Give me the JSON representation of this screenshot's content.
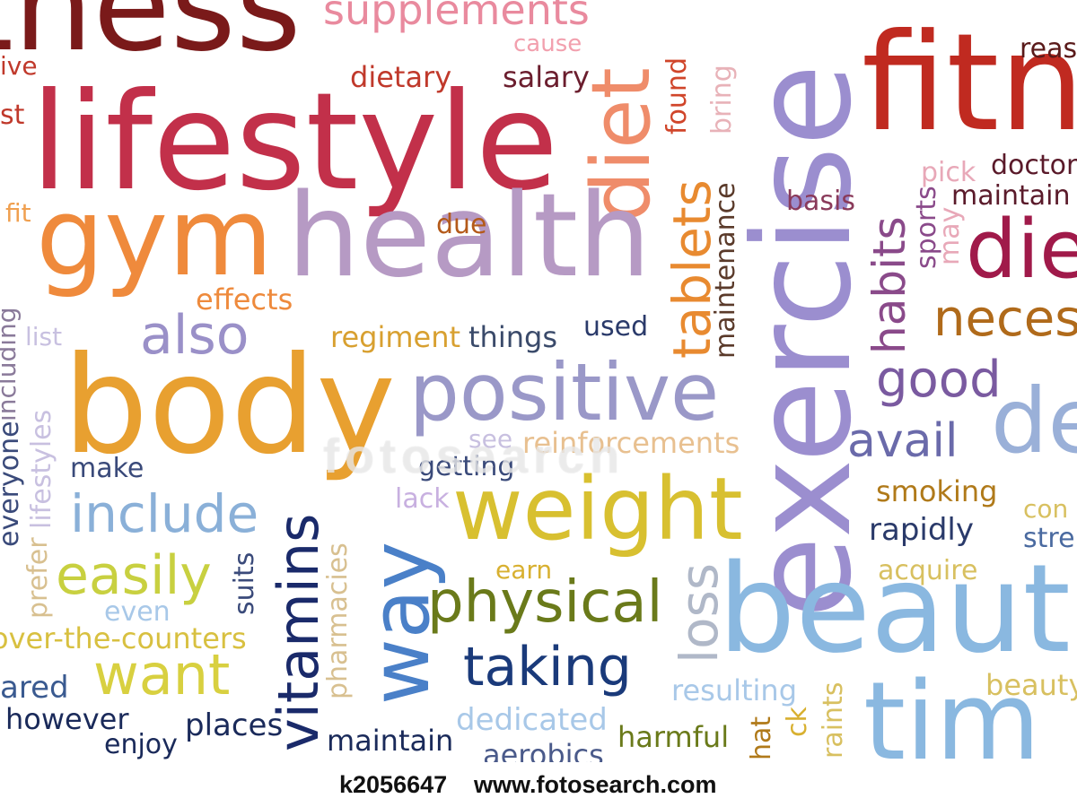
{
  "words": {
    "fitness_top": "tness",
    "supplements": "supplements",
    "ive": "ive",
    "cause": "cause",
    "dietary": "dietary",
    "salary": "salary",
    "lifestyle": "lifestyle",
    "diet": "diet",
    "found": "found",
    "bring": "bring",
    "exercise": "exercise",
    "fitn": "fitn",
    "reas": "reas",
    "st": "st",
    "fit": "fit",
    "gym": "gym",
    "health": "health",
    "due": "due",
    "tablets": "tablets",
    "maintenance": "maintenance",
    "basis": "basis",
    "pick": "pick",
    "doctor": "doctor",
    "maintain_right": "maintain",
    "habits": "habits",
    "sports": "sports",
    "may": "may",
    "die": "die",
    "neces": "neces",
    "effects": "effects",
    "list": "list",
    "also": "also",
    "regiment": "regiment",
    "things": "things",
    "used": "used",
    "including": "including",
    "body": "body",
    "positive": "positive",
    "good": "good",
    "avail": "avail",
    "de": "de",
    "see": "see",
    "reinforcements": "reinforcements",
    "make": "make",
    "getting": "getting",
    "lack": "lack",
    "everyone": "everyone",
    "lifestyles": "lifestyles",
    "prefer": "prefer",
    "include": "include",
    "vitamins": "vitamins",
    "weight": "weight",
    "smoking": "smoking",
    "con": "con",
    "rapidly": "rapidly",
    "stre": "stre",
    "easily": "easily",
    "suits": "suits",
    "way": "way",
    "earn": "earn",
    "acquire": "acquire",
    "pharmacies": "pharmacies",
    "even": "even",
    "physical": "physical",
    "loss": "loss",
    "beauti": "beauti",
    "over_the_counters": "over-the-counters",
    "want": "want",
    "taking": "taking",
    "ared": "ared",
    "resulting": "resulting",
    "beauty": "beauty",
    "however": "however",
    "places": "places",
    "dedicated": "dedicated",
    "tim": "tim",
    "enjoy": "enjoy",
    "maintain_bottom": "maintain",
    "harmful": "harmful",
    "aerobics": "aerobics",
    "hat": "hat",
    "ck": "ck",
    "raints": "raints"
  },
  "watermark": "fotosearch",
  "footer": {
    "code": "k2056647",
    "url": "www.fotosearch.com"
  }
}
